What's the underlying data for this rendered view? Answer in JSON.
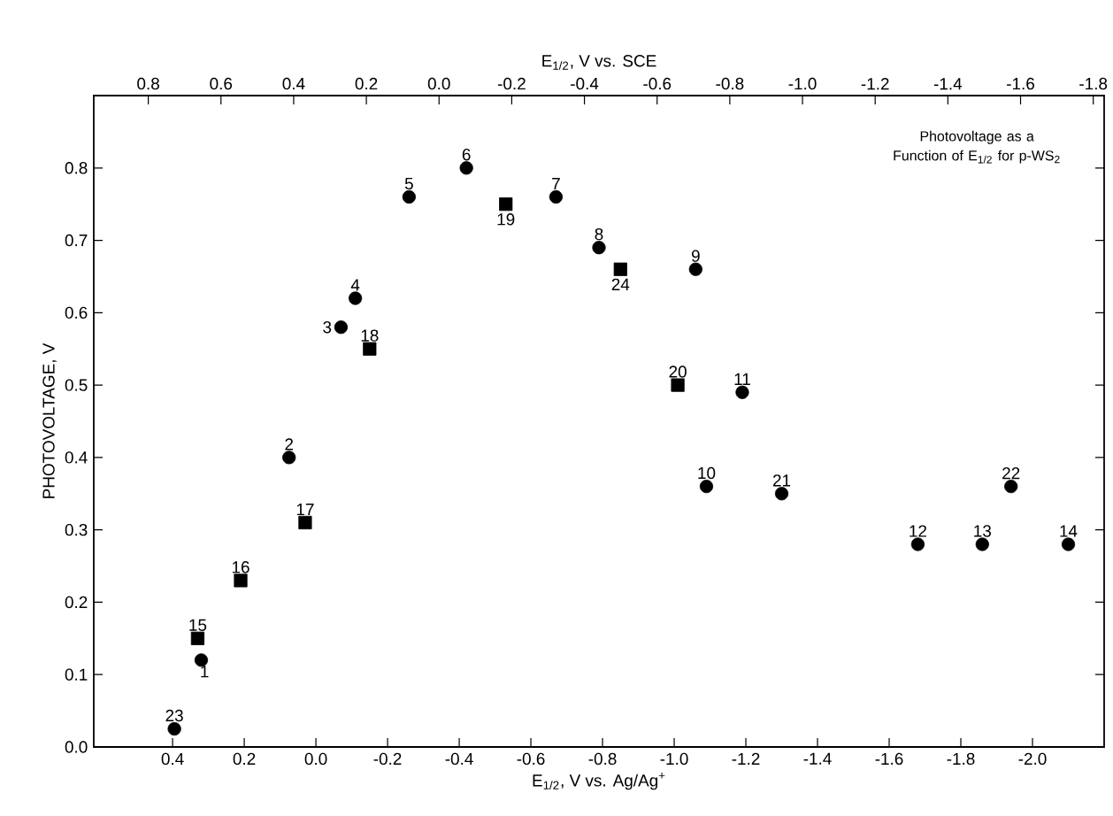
{
  "chart_data": {
    "type": "scatter",
    "xlabel": "E$_{1/2}$, V vs. Ag/Ag$^{+}$",
    "x2label": "E$_{1/2}$, V vs. SCE",
    "ylabel": "PHOTOVOLTAGE, V",
    "xlim": [
      0.62,
      -2.2
    ],
    "xticks": [
      {
        "value": 0.4,
        "label": "0.4"
      },
      {
        "value": 0.2,
        "label": "0.2"
      },
      {
        "value": 0,
        "label": "0.0"
      },
      {
        "value": -0.2,
        "label": "-0.2"
      },
      {
        "value": -0.4,
        "label": "-0.4"
      },
      {
        "value": -0.6,
        "label": "-0.6"
      },
      {
        "value": -0.8,
        "label": "-0.8"
      },
      {
        "value": -1.0,
        "label": "-1.0"
      },
      {
        "value": -1.2,
        "label": "-1.2"
      },
      {
        "value": -1.4,
        "label": "-1.4"
      },
      {
        "value": -1.6,
        "label": "-1.6"
      },
      {
        "value": -1.8,
        "label": "-1.8"
      },
      {
        "value": -2.0,
        "label": "-2.0"
      }
    ],
    "x2lim": [
      0.95,
      -1.83
    ],
    "x2ticks": [
      {
        "value": 0.8,
        "label": "0.8"
      },
      {
        "value": 0.6,
        "label": "0.6"
      },
      {
        "value": 0.4,
        "label": "0.4"
      },
      {
        "value": 0.2,
        "label": "0.2"
      },
      {
        "value": 0,
        "label": "0.0"
      },
      {
        "value": -0.2,
        "label": "-0.2"
      },
      {
        "value": -0.4,
        "label": "-0.4"
      },
      {
        "value": -0.6,
        "label": "-0.6"
      },
      {
        "value": -0.8,
        "label": "-0.8"
      },
      {
        "value": -1.0,
        "label": "-1.0"
      },
      {
        "value": -1.2,
        "label": "-1.2"
      },
      {
        "value": -1.4,
        "label": "-1.4"
      },
      {
        "value": -1.6,
        "label": "-1.6"
      },
      {
        "value": -1.8,
        "label": "-1.8"
      }
    ],
    "ylim": [
      0,
      0.9
    ],
    "yticks": [
      {
        "value": 0,
        "label": "0.0"
      },
      {
        "value": 0.1,
        "label": "0.1"
      },
      {
        "value": 0.2,
        "label": "0.2"
      },
      {
        "value": 0.3,
        "label": "0.3"
      },
      {
        "value": 0.4,
        "label": "0.4"
      },
      {
        "value": 0.5,
        "label": "0.5"
      },
      {
        "value": 0.6,
        "label": "0.6"
      },
      {
        "value": 0.7,
        "label": "0.7"
      },
      {
        "value": 0.8,
        "label": "0.8"
      }
    ],
    "series": [
      {
        "color": "#000000",
        "marker": "circle",
        "x": [
          0.32,
          0.075,
          -0.07,
          -0.11,
          -0.26,
          -0.42,
          -0.67,
          -0.79,
          -1.06,
          -1.09,
          -1.19,
          -1.68,
          -1.86,
          -2.1,
          -1.3,
          -1.94,
          0.395
        ],
        "values": [
          0.12,
          0.4,
          0.58,
          0.62,
          0.76,
          0.8,
          0.76,
          0.69,
          0.66,
          0.36,
          0.49,
          0.28,
          0.28,
          0.28,
          0.35,
          0.36,
          0.025
        ]
      },
      {
        "color": "#000000",
        "marker": "square",
        "x": [
          0.33,
          0.21,
          0.03,
          -0.15,
          -0.53,
          -1.01,
          -0.85
        ],
        "values": [
          0.15,
          0.23,
          0.31,
          0.55,
          0.75,
          0.5,
          0.66
        ]
      }
    ],
    "annotations": [
      {
        "text": "1",
        "x": 0.32,
        "y": 0.12
      },
      {
        "text": "2",
        "x": 0.075,
        "y": 0.4
      },
      {
        "text": "3",
        "x": -0.07,
        "y": 0.58
      },
      {
        "text": "4",
        "x": -0.11,
        "y": 0.62
      },
      {
        "text": "5",
        "x": -0.26,
        "y": 0.76
      },
      {
        "text": "6",
        "x": -0.42,
        "y": 0.8
      },
      {
        "text": "7",
        "x": -0.67,
        "y": 0.76
      },
      {
        "text": "8",
        "x": -0.79,
        "y": 0.69
      },
      {
        "text": "9",
        "x": -1.06,
        "y": 0.66
      },
      {
        "text": "10",
        "x": -1.09,
        "y": 0.36
      },
      {
        "text": "11",
        "x": -1.19,
        "y": 0.49
      },
      {
        "text": "12",
        "x": -1.68,
        "y": 0.28
      },
      {
        "text": "13",
        "x": -1.86,
        "y": 0.28
      },
      {
        "text": "14",
        "x": -2.1,
        "y": 0.28
      },
      {
        "text": "15",
        "x": 0.33,
        "y": 0.15
      },
      {
        "text": "16",
        "x": 0.21,
        "y": 0.23
      },
      {
        "text": "17",
        "x": 0.03,
        "y": 0.31
      },
      {
        "text": "18",
        "x": -0.15,
        "y": 0.55
      },
      {
        "text": "19",
        "x": -0.53,
        "y": 0.75
      },
      {
        "text": "20",
        "x": -1.01,
        "y": 0.5
      },
      {
        "text": "21",
        "x": -1.3,
        "y": 0.35
      },
      {
        "text": "22",
        "x": -1.94,
        "y": 0.36
      },
      {
        "text": "23",
        "x": 0.395,
        "y": 0.025
      },
      {
        "text": "24",
        "x": -0.85,
        "y": 0.66
      },
      "Photovoltage as a Function of E$_{1/2}$ for p-WS$_{2}$"
    ]
  }
}
